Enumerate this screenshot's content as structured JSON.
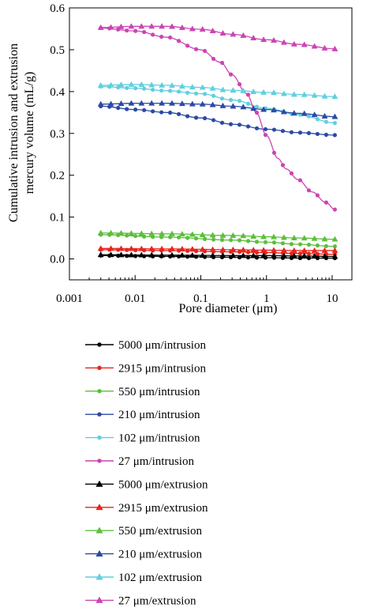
{
  "chart_data": {
    "type": "line",
    "title": "",
    "xlabel": "Pore diameter (μm)",
    "ylabel": "Cumulative intrusion and extrusion mercury volume (mL/g)",
    "ylabel_lines": [
      "Cumulative intrusion and extrusion",
      "mercury volume (mL/g)"
    ],
    "xscale": "log",
    "xlim": [
      0.001,
      20
    ],
    "ylim": [
      -0.05,
      0.6
    ],
    "x_ticks": [
      0.001,
      0.01,
      0.1,
      1,
      10
    ],
    "x_tick_labels": [
      "0.001",
      "0.01",
      "0.1",
      "1",
      "10"
    ],
    "y_ticks": [
      0.0,
      0.1,
      0.2,
      0.3,
      0.4,
      0.5,
      0.6
    ],
    "y_tick_labels": [
      "0.0",
      "0.1",
      "0.2",
      "0.3",
      "0.4",
      "0.5",
      "0.6"
    ],
    "grid": false,
    "legend_position": "below",
    "series": [
      {
        "name": "5000 μm/intrusion",
        "color": "#000000",
        "marker": "circle",
        "x": [
          0.003,
          0.03,
          0.3,
          1,
          3,
          11
        ],
        "y": [
          0.008,
          0.006,
          0.004,
          0.003,
          0.002,
          0.002
        ]
      },
      {
        "name": "2915 μm/intrusion",
        "color": "#e8251f",
        "marker": "circle",
        "x": [
          0.003,
          0.03,
          0.3,
          1,
          3,
          11
        ],
        "y": [
          0.022,
          0.02,
          0.017,
          0.015,
          0.013,
          0.011
        ]
      },
      {
        "name": "550 μm/intrusion",
        "color": "#5cbf3b",
        "marker": "circle",
        "x": [
          0.003,
          0.03,
          0.3,
          1,
          3,
          11
        ],
        "y": [
          0.058,
          0.052,
          0.045,
          0.04,
          0.035,
          0.03
        ]
      },
      {
        "name": "210 μm/intrusion",
        "color": "#2a4aa5",
        "marker": "circle",
        "x": [
          0.003,
          0.01,
          0.03,
          0.1,
          0.3,
          1,
          3,
          11
        ],
        "y": [
          0.365,
          0.357,
          0.35,
          0.337,
          0.322,
          0.31,
          0.302,
          0.296
        ]
      },
      {
        "name": "102 μm/intrusion",
        "color": "#5fd0e0",
        "marker": "circle",
        "x": [
          0.003,
          0.01,
          0.03,
          0.1,
          0.3,
          1,
          3,
          11
        ],
        "y": [
          0.412,
          0.408,
          0.402,
          0.395,
          0.38,
          0.36,
          0.345,
          0.325
        ]
      },
      {
        "name": "27 μm/intrusion",
        "color": "#cc44b4",
        "marker": "circle",
        "x": [
          0.003,
          0.01,
          0.03,
          0.1,
          0.2,
          0.3,
          0.5,
          0.7,
          1.0,
          1.5,
          2,
          3,
          5,
          8,
          11
        ],
        "y": [
          0.552,
          0.545,
          0.53,
          0.5,
          0.47,
          0.44,
          0.395,
          0.35,
          0.295,
          0.24,
          0.215,
          0.19,
          0.16,
          0.135,
          0.118
        ]
      },
      {
        "name": "5000 μm/extrusion",
        "color": "#000000",
        "marker": "triangle",
        "x": [
          0.003,
          0.03,
          0.3,
          1,
          3,
          11
        ],
        "y": [
          0.01,
          0.009,
          0.008,
          0.008,
          0.007,
          0.006
        ]
      },
      {
        "name": "2915 μm/extrusion",
        "color": "#e8251f",
        "marker": "triangle",
        "x": [
          0.003,
          0.03,
          0.3,
          1,
          3,
          11
        ],
        "y": [
          0.025,
          0.024,
          0.022,
          0.021,
          0.02,
          0.02
        ]
      },
      {
        "name": "550 μm/extrusion",
        "color": "#5cbf3b",
        "marker": "triangle",
        "x": [
          0.003,
          0.03,
          0.3,
          1,
          3,
          11
        ],
        "y": [
          0.062,
          0.06,
          0.056,
          0.053,
          0.05,
          0.047
        ]
      },
      {
        "name": "210 μm/extrusion",
        "color": "#2a4aa5",
        "marker": "triangle",
        "x": [
          0.003,
          0.01,
          0.03,
          0.1,
          0.3,
          1,
          3,
          11
        ],
        "y": [
          0.37,
          0.372,
          0.372,
          0.37,
          0.365,
          0.357,
          0.348,
          0.34
        ]
      },
      {
        "name": "102 μm/extrusion",
        "color": "#5fd0e0",
        "marker": "triangle",
        "x": [
          0.003,
          0.01,
          0.03,
          0.1,
          0.3,
          1,
          3,
          11
        ],
        "y": [
          0.415,
          0.417,
          0.415,
          0.41,
          0.403,
          0.398,
          0.393,
          0.388
        ]
      },
      {
        "name": "27 μm/extrusion",
        "color": "#cc44b4",
        "marker": "triangle",
        "x": [
          0.003,
          0.01,
          0.03,
          0.1,
          0.3,
          1,
          3,
          11
        ],
        "y": [
          0.553,
          0.556,
          0.556,
          0.549,
          0.537,
          0.524,
          0.513,
          0.502
        ]
      }
    ]
  }
}
